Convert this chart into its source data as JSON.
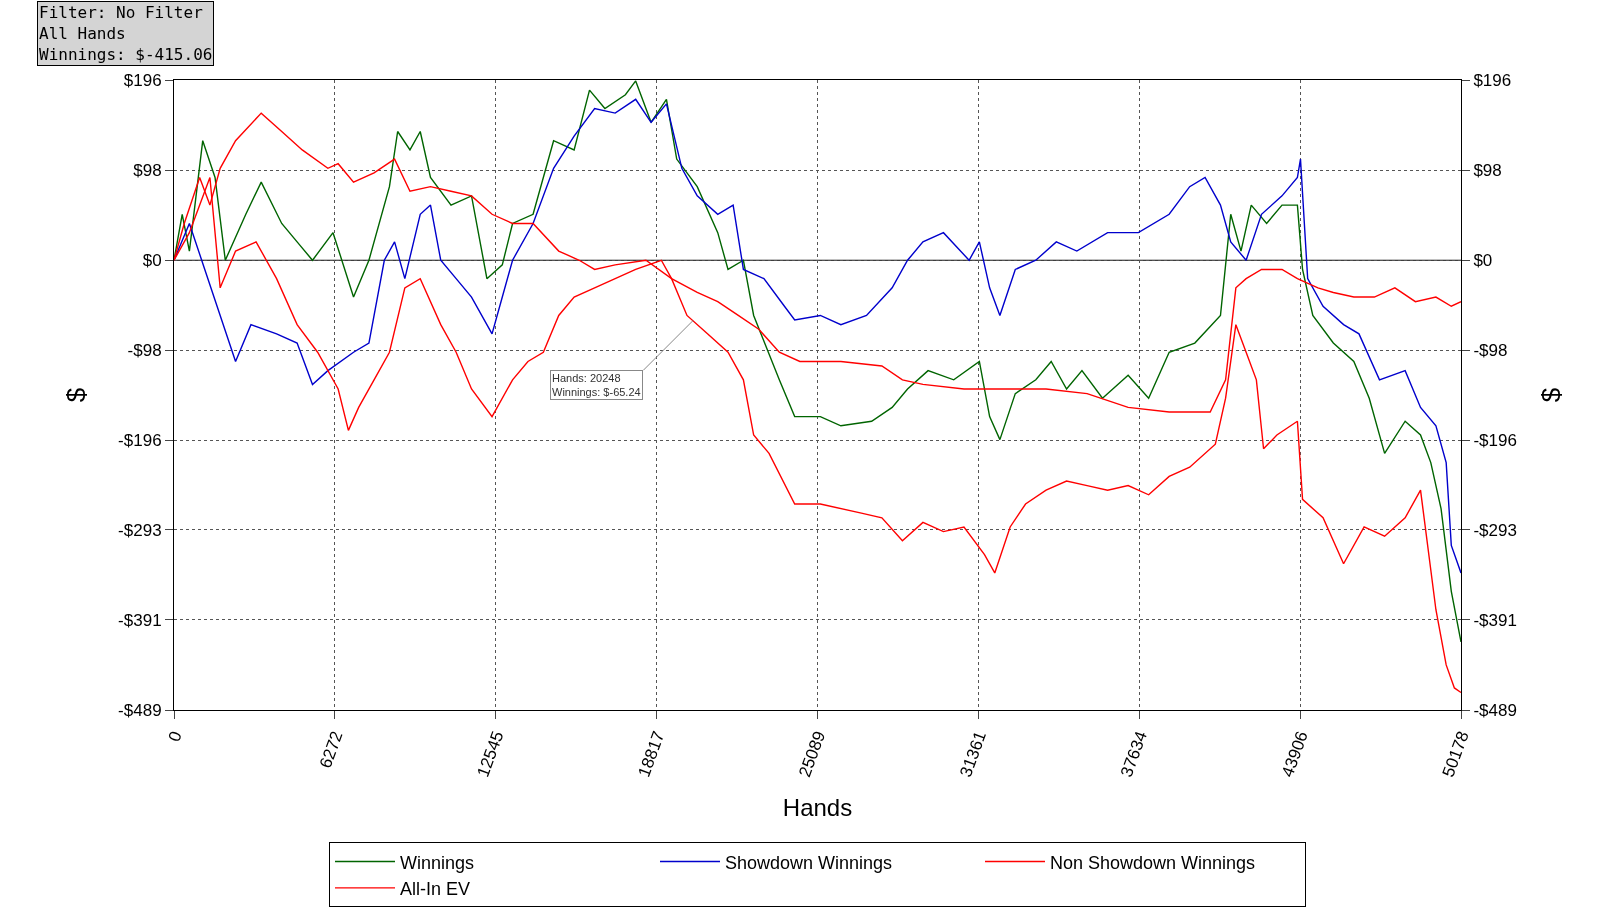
{
  "chart_data": {
    "type": "line",
    "xlabel": "Hands",
    "ylabel": "$",
    "y2label": "$",
    "xlim": [
      0,
      50178
    ],
    "xticks": [
      0,
      6272,
      12545,
      18817,
      25089,
      31361,
      37634,
      43906,
      50178
    ],
    "ylim": [
      -489,
      196
    ],
    "yticks": [
      {
        "value": 196,
        "label": "$196"
      },
      {
        "value": 98,
        "label": "$98"
      },
      {
        "value": 0,
        "label": "$0"
      },
      {
        "value": -98,
        "label": "-$98"
      },
      {
        "value": -196,
        "label": "-$196"
      },
      {
        "value": -293,
        "label": "-$293"
      },
      {
        "value": -391,
        "label": "-$391"
      },
      {
        "value": -489,
        "label": "-$489"
      }
    ],
    "y2lim": [
      -489,
      196
    ],
    "y2ticks": [
      {
        "value": 196,
        "label": "$196"
      },
      {
        "value": 98,
        "label": "$98"
      },
      {
        "value": 0,
        "label": "$0"
      },
      {
        "value": -98,
        "label": "-$98"
      },
      {
        "value": -196,
        "label": "-$196"
      },
      {
        "value": -293,
        "label": "-$293"
      },
      {
        "value": -391,
        "label": "-$391"
      },
      {
        "value": -489,
        "label": "-$489"
      }
    ],
    "grid": true,
    "legend": "bottom",
    "line_style": "solid",
    "ref_lines": [
      {
        "axis": "y",
        "value": 0,
        "color": "#000000"
      }
    ],
    "annotations": [
      "Filter: No Filter\nAll Hands\nWinnings: $-415.06",
      {
        "text": "Hands: 20248\nWinnings: $-65.24",
        "x": 20248,
        "y": -65.24
      }
    ],
    "series": [
      {
        "name": "Winnings",
        "color": "#006400",
        "x": [
          0,
          320,
          600,
          1120,
          1600,
          2000,
          2800,
          3400,
          4200,
          4800,
          5400,
          6200,
          7000,
          7600,
          8400,
          8720,
          9200,
          9600,
          10000,
          10800,
          11600,
          12200,
          12800,
          13200,
          14000,
          14800,
          15600,
          16200,
          16800,
          17600,
          18000,
          18600,
          19200,
          19600,
          20400,
          21200,
          21600,
          22200,
          22600,
          23600,
          24200,
          25200,
          26000,
          27200,
          28000,
          28600,
          29400,
          30400,
          31400,
          31800,
          32200,
          32800,
          33600,
          34200,
          34800,
          35400,
          36200,
          37200,
          38000,
          38800,
          39800,
          40800,
          41200,
          41600,
          42000,
          42600,
          43200,
          43800,
          44000,
          44400,
          45200,
          46000,
          46600,
          47200,
          48000,
          48600,
          49000,
          49400,
          49800,
          50178
        ],
        "values": [
          0,
          50,
          10,
          130,
          90,
          0,
          50,
          85,
          40,
          20,
          0,
          30,
          -40,
          0,
          80,
          140,
          120,
          140,
          90,
          60,
          70,
          -20,
          -5,
          40,
          50,
          130,
          120,
          185,
          165,
          180,
          195,
          150,
          175,
          110,
          80,
          30,
          -10,
          0,
          -60,
          -130,
          -170,
          -170,
          -180,
          -175,
          -160,
          -140,
          -120,
          -130,
          -110,
          -170,
          -195,
          -145,
          -130,
          -110,
          -140,
          -120,
          -150,
          -125,
          -150,
          -100,
          -90,
          -60,
          50,
          10,
          60,
          40,
          60,
          60,
          -10,
          -60,
          -90,
          -110,
          -150,
          -210,
          -175,
          -190,
          -220,
          -270,
          -360,
          -415
        ]
      },
      {
        "name": "Showdown Winnings",
        "color": "#0000cc",
        "x": [
          0,
          600,
          1200,
          1800,
          2400,
          3000,
          4000,
          4800,
          5400,
          6000,
          7000,
          7600,
          8200,
          8600,
          9000,
          9600,
          10000,
          10400,
          11000,
          11600,
          12400,
          12800,
          13200,
          14000,
          14800,
          15600,
          16400,
          17200,
          18000,
          18600,
          19200,
          19800,
          20400,
          21200,
          21800,
          22200,
          23000,
          23800,
          24200,
          25200,
          26000,
          27000,
          28000,
          28600,
          29200,
          30000,
          31000,
          31400,
          31800,
          32200,
          32800,
          33600,
          34400,
          35200,
          36400,
          37600,
          38800,
          39600,
          40200,
          40800,
          41200,
          41800,
          42400,
          43200,
          43800,
          43920,
          44200,
          44800,
          45600,
          46200,
          47000,
          48000,
          48600,
          49200,
          49600,
          49800,
          50178
        ],
        "values": [
          0,
          40,
          -10,
          -60,
          -110,
          -70,
          -80,
          -90,
          -135,
          -120,
          -100,
          -90,
          0,
          20,
          -20,
          50,
          60,
          0,
          -20,
          -40,
          -80,
          -40,
          0,
          40,
          100,
          135,
          165,
          160,
          175,
          150,
          170,
          100,
          70,
          50,
          60,
          -10,
          -20,
          -50,
          -65,
          -60,
          -70,
          -60,
          -30,
          0,
          20,
          30,
          0,
          20,
          -30,
          -60,
          -10,
          0,
          20,
          10,
          30,
          30,
          50,
          80,
          90,
          60,
          20,
          0,
          50,
          70,
          90,
          110,
          -20,
          -50,
          -70,
          -80,
          -130,
          -120,
          -160,
          -180,
          -220,
          -310,
          -340
        ]
      },
      {
        "name": "Non Showdown Winnings",
        "color": "#ff0000",
        "x": [
          0,
          400,
          1000,
          1400,
          1800,
          2400,
          3400,
          4200,
          5000,
          6000,
          6400,
          7000,
          7800,
          8600,
          9200,
          10000,
          10800,
          11600,
          12400,
          13200,
          14000,
          15000,
          15800,
          16400,
          17200,
          18400,
          19400,
          20400,
          21200,
          22000,
          22800,
          23600,
          24400,
          26000,
          27600,
          28400,
          29200,
          30800,
          31600,
          32800,
          34000,
          35600,
          37200,
          38800,
          40400,
          41000,
          41400,
          41800,
          42400,
          43200,
          43800,
          44600,
          45200,
          46000,
          46800,
          47600,
          48400,
          49200,
          49800,
          50178
        ],
        "values": [
          0,
          40,
          90,
          60,
          100,
          130,
          160,
          140,
          120,
          100,
          105,
          85,
          95,
          110,
          75,
          80,
          75,
          70,
          50,
          40,
          40,
          10,
          0,
          -10,
          -5,
          0,
          -20,
          -35,
          -45,
          -60,
          -75,
          -100,
          -110,
          -110,
          -115,
          -130,
          -135,
          -140,
          -140,
          -140,
          -140,
          -145,
          -160,
          -165,
          -165,
          -130,
          -30,
          -20,
          -10,
          -10,
          -20,
          -30,
          -35,
          -40,
          -40,
          -30,
          -45,
          -40,
          -50,
          -45
        ]
      },
      {
        "name": "All-In EV",
        "color": "#ff0000",
        "x": [
          0,
          600,
          1400,
          1800,
          2400,
          3200,
          4000,
          4800,
          5600,
          6400,
          6800,
          7200,
          7800,
          8400,
          9000,
          9600,
          10400,
          11000,
          11600,
          12400,
          13200,
          13800,
          14400,
          15000,
          15600,
          16400,
          17200,
          18000,
          19000,
          19400,
          20000,
          20800,
          21600,
          22200,
          22600,
          23200,
          24200,
          25200,
          26800,
          27600,
          28400,
          29200,
          30000,
          30800,
          31600,
          32000,
          32600,
          33200,
          34000,
          34800,
          35600,
          36400,
          37200,
          38000,
          38800,
          39600,
          40600,
          41000,
          41400,
          41800,
          42200,
          42480,
          43000,
          43800,
          44000,
          44800,
          45600,
          46400,
          47200,
          48000,
          48600,
          49200,
          49600,
          49920,
          50178
        ],
        "values": [
          0,
          30,
          90,
          -30,
          10,
          20,
          -20,
          -70,
          -100,
          -140,
          -185,
          -160,
          -130,
          -100,
          -30,
          -20,
          -70,
          -100,
          -140,
          -170,
          -130,
          -110,
          -100,
          -60,
          -40,
          -30,
          -20,
          -10,
          0,
          -20,
          -60,
          -80,
          -100,
          -130,
          -190,
          -210,
          -265,
          -265,
          -275,
          -280,
          -305,
          -285,
          -295,
          -290,
          -320,
          -340,
          -290,
          -265,
          -250,
          -240,
          -245,
          -250,
          -245,
          -255,
          -235,
          -225,
          -200,
          -150,
          -70,
          -100,
          -130,
          -205,
          -190,
          -175,
          -260,
          -280,
          -330,
          -290,
          -300,
          -280,
          -250,
          -380,
          -440,
          -465,
          -470
        ]
      }
    ]
  }
}
